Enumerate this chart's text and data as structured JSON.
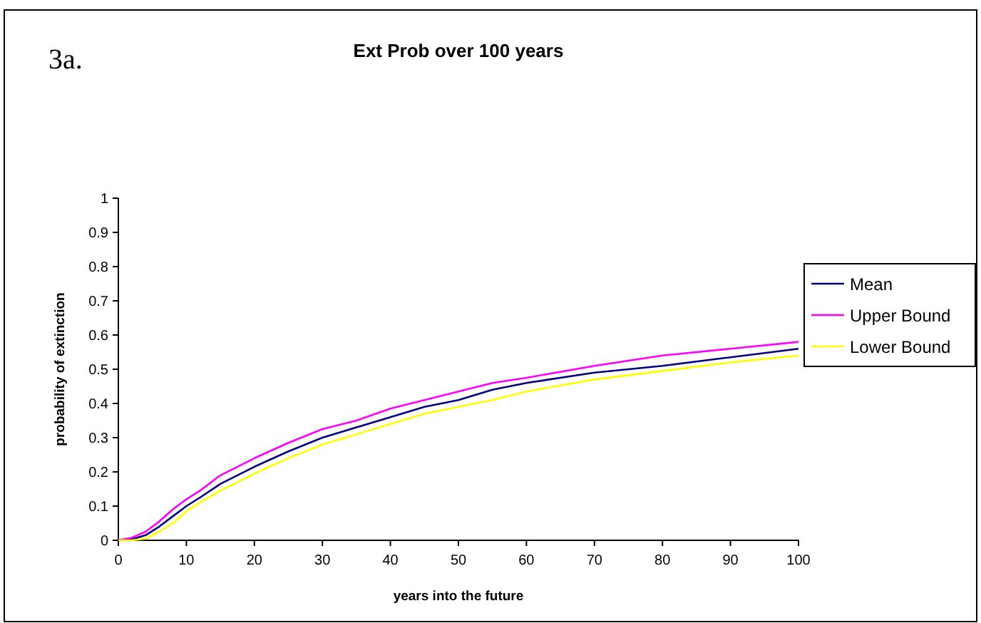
{
  "chart_data": {
    "type": "line",
    "title": "Ext Prob over 100 years",
    "xlabel": "years into the future",
    "ylabel": "probability of extinction",
    "annotations": [
      "3a."
    ],
    "x": [
      0,
      2,
      4,
      6,
      8,
      10,
      12,
      15,
      20,
      25,
      30,
      35,
      40,
      45,
      50,
      55,
      60,
      70,
      80,
      90,
      100
    ],
    "series": [
      {
        "name": "Mean",
        "color": "#000080",
        "values": [
          0,
          0.003,
          0.015,
          0.04,
          0.07,
          0.1,
          0.125,
          0.165,
          0.215,
          0.26,
          0.3,
          0.33,
          0.36,
          0.39,
          0.41,
          0.44,
          0.46,
          0.49,
          0.51,
          0.535,
          0.56
        ]
      },
      {
        "name": "Upper Bound",
        "color": "#ff00ff",
        "values": [
          0,
          0.008,
          0.025,
          0.055,
          0.09,
          0.12,
          0.145,
          0.19,
          0.24,
          0.285,
          0.325,
          0.35,
          0.385,
          0.41,
          0.435,
          0.46,
          0.475,
          0.51,
          0.54,
          0.56,
          0.58
        ]
      },
      {
        "name": "Lower Bound",
        "color": "#ffff00",
        "values": [
          0,
          0,
          0.005,
          0.025,
          0.05,
          0.085,
          0.11,
          0.145,
          0.195,
          0.24,
          0.28,
          0.31,
          0.34,
          0.37,
          0.39,
          0.41,
          0.435,
          0.47,
          0.495,
          0.52,
          0.54
        ]
      }
    ],
    "xlim": [
      0,
      100
    ],
    "xticks": [
      0,
      10,
      20,
      30,
      40,
      50,
      60,
      70,
      80,
      90,
      100
    ],
    "ylim": [
      0,
      1
    ],
    "yticks": [
      0,
      0.1,
      0.2,
      0.3,
      0.4,
      0.5,
      0.6,
      0.7,
      0.8,
      0.9,
      1
    ],
    "grid": false,
    "legend": "right",
    "marker": "none",
    "line_style": "solid"
  }
}
